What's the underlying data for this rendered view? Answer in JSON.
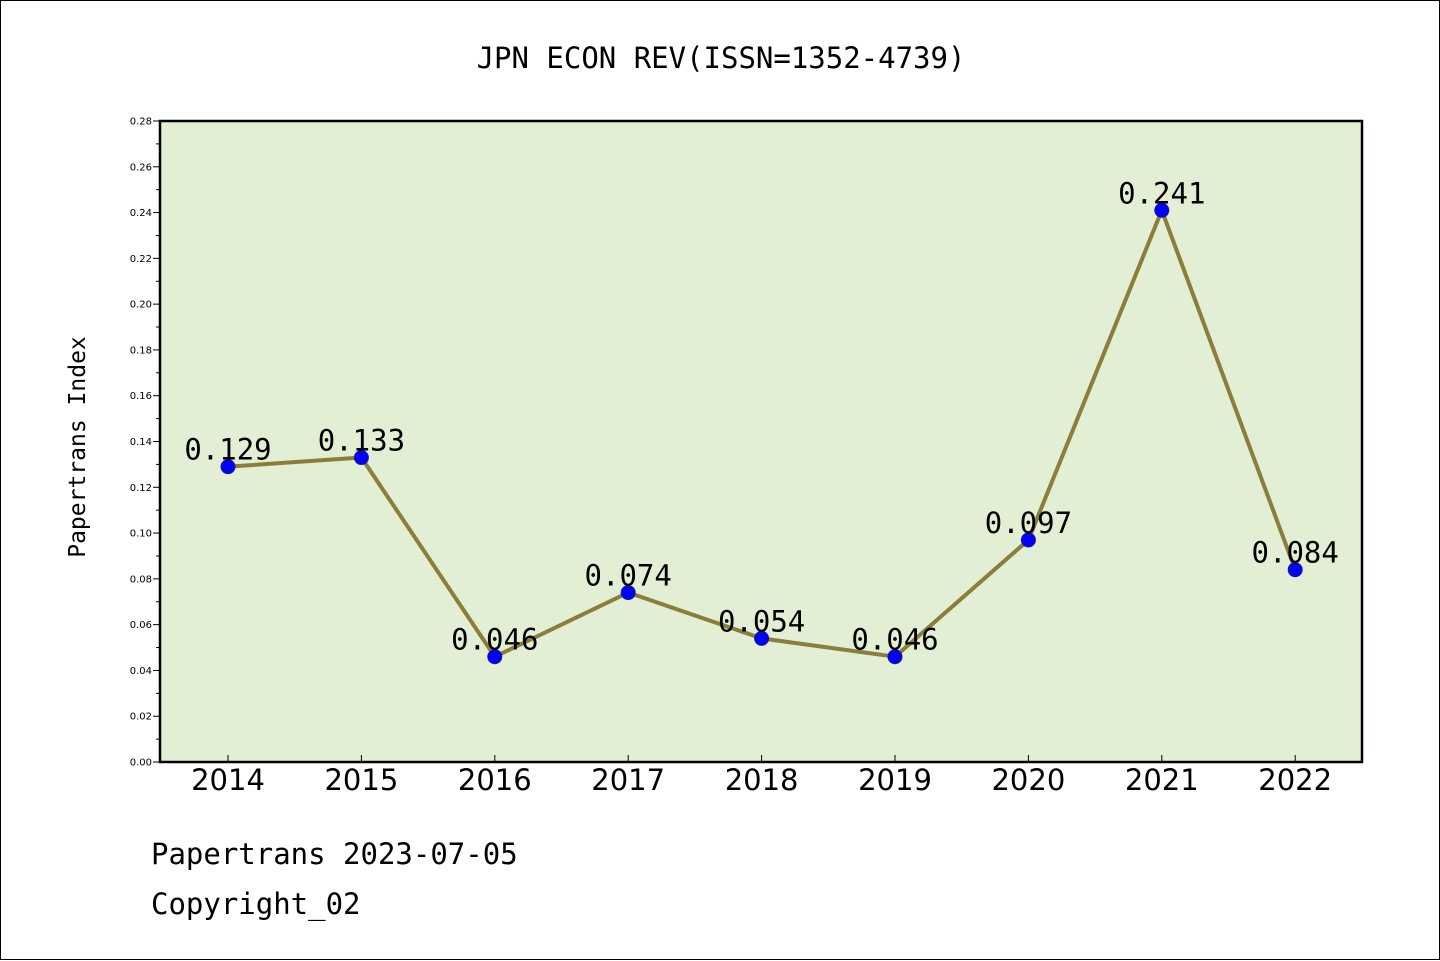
{
  "chart_data": {
    "type": "line",
    "title": "JPN ECON REV(ISSN=1352-4739)",
    "xlabel": "",
    "ylabel": "Papertrans Index",
    "categories": [
      "2014",
      "2015",
      "2016",
      "2017",
      "2018",
      "2019",
      "2020",
      "2021",
      "2022"
    ],
    "series": [
      {
        "values": [
          0.129,
          0.133,
          0.046,
          0.074,
          0.054,
          0.046,
          0.097,
          0.241,
          0.084
        ],
        "data_labels": [
          "0.129",
          "0.133",
          "0.046",
          "0.074",
          "0.054",
          "0.046",
          "0.097",
          "0.241",
          "0.084"
        ],
        "line_color": "#8b7d3a",
        "marker_color": "#0000ff"
      }
    ],
    "yticks": [
      "0.00",
      "0.02",
      "0.04",
      "0.06",
      "0.08",
      "0.10",
      "0.12",
      "0.14",
      "0.16",
      "0.18",
      "0.20",
      "0.22",
      "0.24",
      "0.26",
      "0.28"
    ],
    "ylim": [
      0,
      0.28
    ],
    "grid": false,
    "plot_background": "#e2efd5"
  },
  "footer": {
    "date_text": "Papertrans 2023-07-05",
    "copyright_text": "Copyright_02"
  }
}
